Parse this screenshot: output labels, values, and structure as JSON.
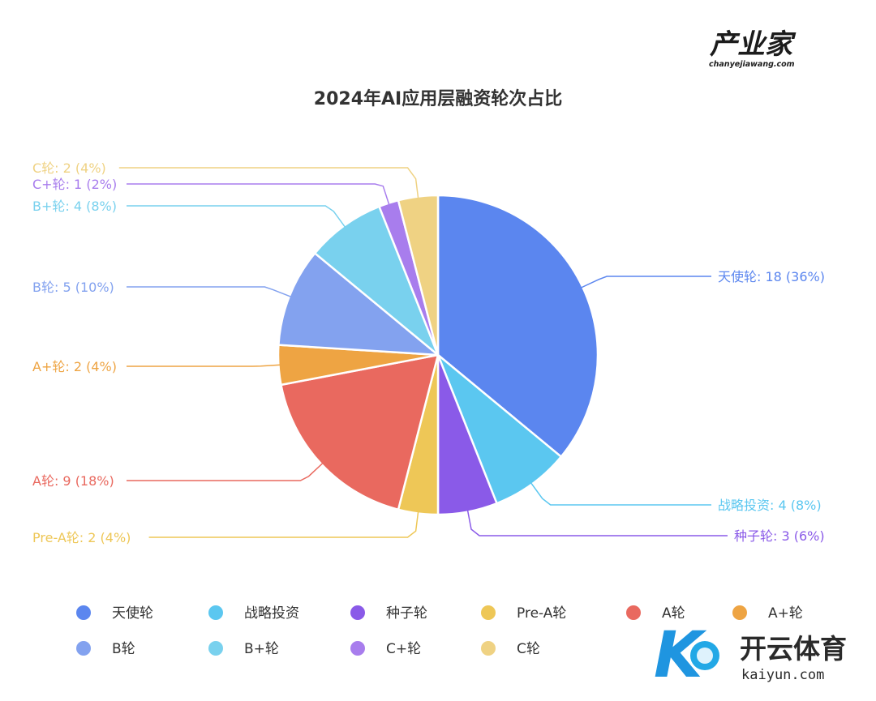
{
  "brand": {
    "name": "产业家",
    "url": "chanyejiawang.com"
  },
  "watermark": {
    "name": "开云体育",
    "url": "kaiyun.com",
    "glyph": "K"
  },
  "chart_data": {
    "type": "pie",
    "title": "2024年AI应用层融资轮次占比",
    "total": 50,
    "legend_position": "bottom-left",
    "slices": [
      {
        "name": "天使轮",
        "value": 18,
        "label": "天使轮: 18 (36%)",
        "color": "#5b86ef"
      },
      {
        "name": "战略投资",
        "value": 4,
        "label": "战略投资: 4 (8%)",
        "color": "#5bc7f0"
      },
      {
        "name": "种子轮",
        "value": 3,
        "label": "种子轮: 3 (6%)",
        "color": "#8a5ae8"
      },
      {
        "name": "Pre-A轮",
        "value": 2,
        "label": "Pre-A轮: 2 (4%)",
        "color": "#eec757"
      },
      {
        "name": "A轮",
        "value": 9,
        "label": "A轮: 9 (18%)",
        "color": "#e9695f"
      },
      {
        "name": "A+轮",
        "value": 2,
        "label": "A+轮: 2 (4%)",
        "color": "#eea443"
      },
      {
        "name": "B轮",
        "value": 5,
        "label": "B轮: 5 (10%)",
        "color": "#83a2ef"
      },
      {
        "name": "B+轮",
        "value": 4,
        "label": "B+轮: 4 (8%)",
        "color": "#79d1ee"
      },
      {
        "name": "C+轮",
        "value": 1,
        "label": "C+轮: 1 (2%)",
        "color": "#a87ded"
      },
      {
        "name": "C轮",
        "value": 2,
        "label": "C轮: 2 (4%)",
        "color": "#efd283"
      }
    ]
  }
}
